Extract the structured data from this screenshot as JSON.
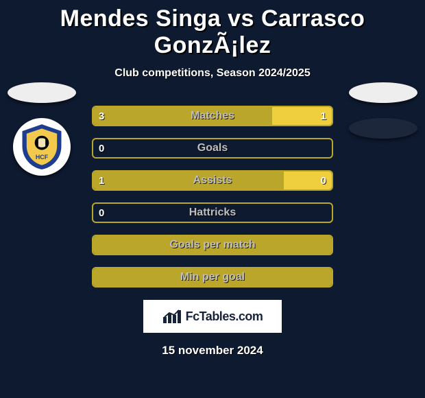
{
  "title": "Mendes Singa vs Carrasco GonzÃ¡lez",
  "subtitle": "Club competitions, Season 2024/2025",
  "date_text": "15 november 2024",
  "brand_text": "FcTables.com",
  "colors": {
    "accent_olive": "#b9a62a",
    "accent_yellow": "#f0cf3f",
    "background": "#0e1a30",
    "label_text": "#bfbfbf",
    "val_text": "#ffffff",
    "brand_border": "#0e1a30",
    "brand_text": "#17233a",
    "flag_fill": "#eeeeee"
  },
  "left_club_crest": {
    "outer_fill": "#1f3d8f",
    "inner_fill": "#f2c94c",
    "border_color": "#ffffff",
    "initials": "HCF",
    "initials_color": "#1f3d8f"
  },
  "stats": [
    {
      "label": "Matches",
      "val_a": "3",
      "val_b": "1",
      "fill_a_pct": 75,
      "fill_b_pct": 25,
      "show_b_val": true,
      "border_color": "#b9a62a",
      "fill_a_color": "#b9a62a",
      "fill_b_color": "#f0cf3f"
    },
    {
      "label": "Goals",
      "val_a": "0",
      "val_b": "",
      "fill_a_pct": 0,
      "fill_b_pct": 0,
      "show_b_val": false,
      "border_color": "#b9a62a",
      "fill_a_color": "#b9a62a",
      "fill_b_color": "#f0cf3f"
    },
    {
      "label": "Assists",
      "val_a": "1",
      "val_b": "0",
      "fill_a_pct": 80,
      "fill_b_pct": 20,
      "show_b_val": true,
      "border_color": "#b9a62a",
      "fill_a_color": "#b9a62a",
      "fill_b_color": "#f0cf3f"
    },
    {
      "label": "Hattricks",
      "val_a": "0",
      "val_b": "",
      "fill_a_pct": 0,
      "fill_b_pct": 0,
      "show_b_val": false,
      "border_color": "#b9a62a",
      "fill_a_color": "#b9a62a",
      "fill_b_color": "#f0cf3f"
    },
    {
      "label": "Goals per match",
      "val_a": "",
      "val_b": "",
      "fill_a_pct": 100,
      "fill_b_pct": 0,
      "show_b_val": false,
      "border_color": "#b9a62a",
      "fill_a_color": "#b9a62a",
      "fill_b_color": "#f0cf3f"
    },
    {
      "label": "Min per goal",
      "val_a": "",
      "val_b": "",
      "fill_a_pct": 100,
      "fill_b_pct": 0,
      "show_b_val": false,
      "border_color": "#b9a62a",
      "fill_a_color": "#b9a62a",
      "fill_b_color": "#f0cf3f"
    }
  ]
}
